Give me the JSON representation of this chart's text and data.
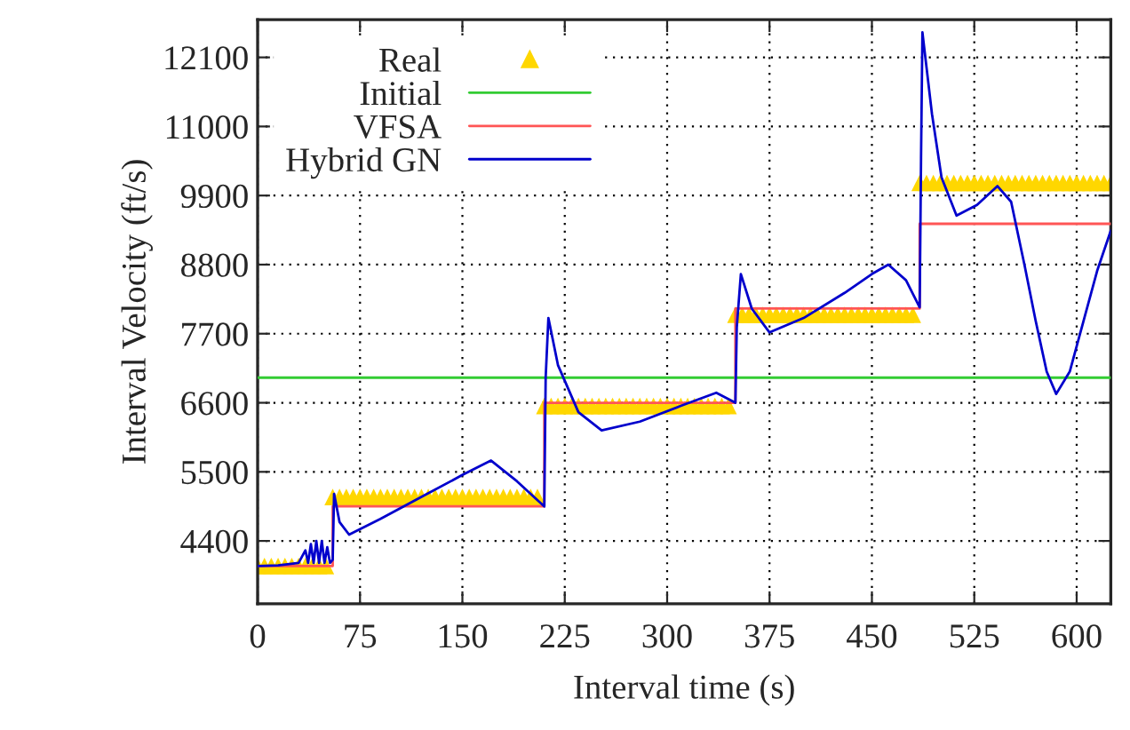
{
  "chart_data": {
    "type": "line",
    "xlabel": "Interval time (s)",
    "ylabel": "Interval Velocity (ft/s)",
    "xlim": [
      0,
      625
    ],
    "xticks": [
      0,
      75,
      150,
      225,
      300,
      375,
      450,
      525,
      600
    ],
    "ylim": [
      3400,
      12700
    ],
    "yticks": [
      4400,
      5500,
      6600,
      7700,
      8800,
      9900,
      11000,
      12100
    ],
    "grid": true,
    "legend": "top left",
    "series": [
      {
        "name": "Real",
        "type": "scatter",
        "marker": "triangle",
        "color": "#ffd700",
        "x": [
          0,
          5,
          10,
          15,
          20,
          25,
          30,
          35,
          40,
          45,
          50,
          55,
          60,
          65,
          70,
          75,
          80,
          85,
          90,
          95,
          100,
          105,
          110,
          115,
          120,
          125,
          130,
          135,
          140,
          145,
          150,
          155,
          160,
          165,
          170,
          175,
          180,
          185,
          190,
          195,
          200,
          205,
          210,
          215,
          220,
          225,
          230,
          235,
          240,
          245,
          250,
          255,
          260,
          265,
          270,
          275,
          280,
          285,
          290,
          295,
          300,
          305,
          310,
          315,
          320,
          325,
          330,
          335,
          340,
          345,
          350,
          355,
          360,
          365,
          370,
          375,
          380,
          385,
          390,
          395,
          400,
          405,
          410,
          415,
          420,
          425,
          430,
          435,
          440,
          445,
          450,
          455,
          460,
          465,
          470,
          475,
          480,
          485,
          490,
          495,
          500,
          505,
          510,
          515,
          520,
          525,
          530,
          535,
          540,
          545,
          550,
          555,
          560,
          565,
          570,
          575,
          580,
          585,
          590,
          595,
          600,
          605,
          610,
          615,
          620,
          625
        ],
        "values": [
          4000,
          4000,
          4000,
          4000,
          4000,
          4000,
          4000,
          4000,
          4000,
          4000,
          4000,
          5100,
          5100,
          5100,
          5100,
          5100,
          5100,
          5100,
          5100,
          5100,
          5100,
          5100,
          5100,
          5100,
          5100,
          5100,
          5100,
          5100,
          5100,
          5100,
          5100,
          5100,
          5100,
          5100,
          5100,
          5100,
          5100,
          5100,
          5100,
          5100,
          5100,
          5100,
          6550,
          6550,
          6550,
          6550,
          6550,
          6550,
          6550,
          6550,
          6550,
          6550,
          6550,
          6550,
          6550,
          6550,
          6550,
          6550,
          6550,
          6550,
          6550,
          6550,
          6550,
          6550,
          6550,
          6550,
          6550,
          6550,
          6550,
          6550,
          8000,
          8000,
          8000,
          8000,
          8000,
          8000,
          8000,
          8000,
          8000,
          8000,
          8000,
          8000,
          8000,
          8000,
          8000,
          8000,
          8000,
          8000,
          8000,
          8000,
          8000,
          8000,
          8000,
          8000,
          8000,
          8000,
          8000,
          10100,
          10100,
          10100,
          10100,
          10100,
          10100,
          10100,
          10100,
          10100,
          10100,
          10100,
          10100,
          10100,
          10100,
          10100,
          10100,
          10100,
          10100,
          10100,
          10100,
          10100,
          10100,
          10100,
          10100,
          10100,
          10100,
          10100,
          10100,
          10100
        ]
      },
      {
        "name": "Initial",
        "color": "#33cc33",
        "x": [
          0,
          625
        ],
        "values": [
          7000,
          7000
        ]
      },
      {
        "name": "VFSA",
        "color": "#ff5555",
        "x": [
          0,
          55,
          55,
          210,
          210,
          350,
          350,
          485,
          485,
          625
        ],
        "values": [
          4000,
          4000,
          4950,
          4950,
          6600,
          6600,
          8100,
          8100,
          9450,
          9450
        ]
      },
      {
        "name": "Hybrid GN",
        "color": "#0000cc",
        "x": [
          0,
          15,
          30,
          35,
          37,
          39,
          41,
          43,
          45,
          47,
          49,
          51,
          53,
          55,
          56,
          60,
          67,
          90,
          120,
          150,
          171,
          190,
          210,
          211,
          213,
          220,
          235,
          252,
          280,
          310,
          336,
          350,
          351,
          354,
          362,
          375,
          400,
          430,
          450,
          462,
          475,
          485,
          486,
          487,
          494,
          501,
          512,
          527,
          542,
          552,
          562,
          570,
          578,
          585,
          595,
          605,
          615,
          625
        ],
        "values": [
          4000,
          4010,
          4050,
          4250,
          4050,
          4350,
          4050,
          4400,
          4050,
          4400,
          4050,
          4300,
          4050,
          4100,
          5150,
          4700,
          4500,
          4750,
          5100,
          5450,
          5680,
          5350,
          4950,
          7000,
          7950,
          7200,
          6450,
          6160,
          6300,
          6550,
          6760,
          6600,
          7800,
          8650,
          8100,
          7720,
          7950,
          8350,
          8650,
          8800,
          8550,
          8120,
          10500,
          12500,
          11200,
          10190,
          9580,
          9750,
          10050,
          9800,
          8770,
          7900,
          7100,
          6740,
          7100,
          7900,
          8700,
          9340
        ]
      }
    ]
  }
}
